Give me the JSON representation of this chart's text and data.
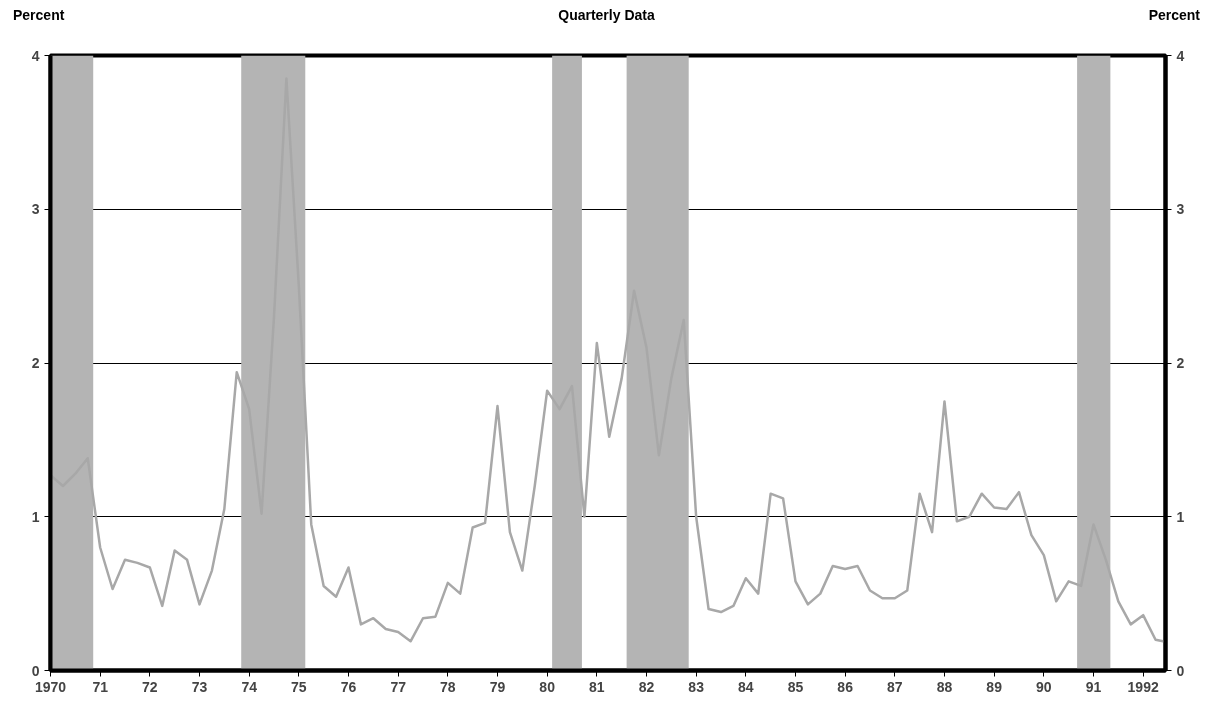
{
  "chart_data": {
    "type": "line",
    "title": "Quarterly Data",
    "ylabel": "Percent",
    "y2label": "Percent",
    "x": [
      1970.0,
      1970.25,
      1970.5,
      1970.75,
      1971.0,
      1971.25,
      1971.5,
      1971.75,
      1972.0,
      1972.25,
      1972.5,
      1972.75,
      1973.0,
      1973.25,
      1973.5,
      1973.75,
      1974.0,
      1974.25,
      1974.5,
      1974.75,
      1975.0,
      1975.25,
      1975.5,
      1975.75,
      1976.0,
      1976.25,
      1976.5,
      1976.75,
      1977.0,
      1977.25,
      1977.5,
      1977.75,
      1978.0,
      1978.25,
      1978.5,
      1978.75,
      1979.0,
      1979.25,
      1979.5,
      1979.75,
      1980.0,
      1980.25,
      1980.5,
      1980.75,
      1981.0,
      1981.25,
      1981.5,
      1981.75,
      1982.0,
      1982.25,
      1982.5,
      1982.75,
      1983.0,
      1983.25,
      1983.5,
      1983.75,
      1984.0,
      1984.25,
      1984.5,
      1984.75,
      1985.0,
      1985.25,
      1985.5,
      1985.75,
      1986.0,
      1986.25,
      1986.5,
      1986.75,
      1987.0,
      1987.25,
      1987.5,
      1987.75,
      1988.0,
      1988.25,
      1988.5,
      1988.75,
      1989.0,
      1989.25,
      1989.5,
      1989.75,
      1990.0,
      1990.25,
      1990.5,
      1990.75,
      1991.0,
      1991.25,
      1991.5,
      1991.75,
      1992.0,
      1992.25,
      1992.4
    ],
    "series": [
      {
        "color": "#a8a8a8",
        "values": [
          1.27,
          1.2,
          1.28,
          1.38,
          0.8,
          0.53,
          0.72,
          0.7,
          0.67,
          0.42,
          0.78,
          0.72,
          0.43,
          0.65,
          1.05,
          1.94,
          1.7,
          1.02,
          2.3,
          3.85,
          2.5,
          0.95,
          0.55,
          0.48,
          0.67,
          0.3,
          0.34,
          0.27,
          0.25,
          0.19,
          0.34,
          0.35,
          0.57,
          0.5,
          0.93,
          0.96,
          1.72,
          0.9,
          0.65,
          1.2,
          1.82,
          1.7,
          1.85,
          1.0,
          2.13,
          1.52,
          1.9,
          2.47,
          2.1,
          1.4,
          1.9,
          2.28,
          1.0,
          0.4,
          0.38,
          0.42,
          0.6,
          0.5,
          1.15,
          1.12,
          0.58,
          0.43,
          0.5,
          0.68,
          0.66,
          0.68,
          0.52,
          0.47,
          0.47,
          0.52,
          1.15,
          0.9,
          1.75,
          0.97,
          1.0,
          1.15,
          1.06,
          1.05,
          1.16,
          0.88,
          0.75,
          0.45,
          0.58,
          0.55,
          0.95,
          0.72,
          0.45,
          0.3,
          0.36,
          0.2,
          0.19
        ]
      }
    ],
    "xlim": [
      1970.0,
      1992.45
    ],
    "xticks": [
      {
        "value": 1970,
        "label": "1970"
      },
      {
        "value": 1971,
        "label": "71"
      },
      {
        "value": 1972,
        "label": "72"
      },
      {
        "value": 1973,
        "label": "73"
      },
      {
        "value": 1974,
        "label": "74"
      },
      {
        "value": 1975,
        "label": "75"
      },
      {
        "value": 1976,
        "label": "76"
      },
      {
        "value": 1977,
        "label": "77"
      },
      {
        "value": 1978,
        "label": "78"
      },
      {
        "value": 1979,
        "label": "79"
      },
      {
        "value": 1980,
        "label": "80"
      },
      {
        "value": 1981,
        "label": "81"
      },
      {
        "value": 1982,
        "label": "82"
      },
      {
        "value": 1983,
        "label": "83"
      },
      {
        "value": 1984,
        "label": "84"
      },
      {
        "value": 1985,
        "label": "85"
      },
      {
        "value": 1986,
        "label": "86"
      },
      {
        "value": 1987,
        "label": "87"
      },
      {
        "value": 1988,
        "label": "88"
      },
      {
        "value": 1989,
        "label": "89"
      },
      {
        "value": 1990,
        "label": "90"
      },
      {
        "value": 1991,
        "label": "91"
      },
      {
        "value": 1992,
        "label": "1992"
      }
    ],
    "ylim": [
      0,
      4
    ],
    "yticks": [
      0,
      1,
      2,
      3,
      4
    ],
    "y2lim": [
      0,
      4
    ],
    "y2ticks": [
      0,
      1,
      2,
      3,
      4
    ],
    "bands": [
      {
        "axis": "x",
        "from": 1970.0,
        "to": 1970.86,
        "color": "#b4b4b4"
      },
      {
        "axis": "x",
        "from": 1973.84,
        "to": 1975.13,
        "color": "#b4b4b4"
      },
      {
        "axis": "x",
        "from": 1980.1,
        "to": 1980.7,
        "color": "#b4b4b4"
      },
      {
        "axis": "x",
        "from": 1981.6,
        "to": 1982.85,
        "color": "#b4b4b4"
      },
      {
        "axis": "x",
        "from": 1990.67,
        "to": 1991.34,
        "color": "#b4b4b4"
      }
    ],
    "grid": "y",
    "marker": "none",
    "line_style": "solid"
  }
}
